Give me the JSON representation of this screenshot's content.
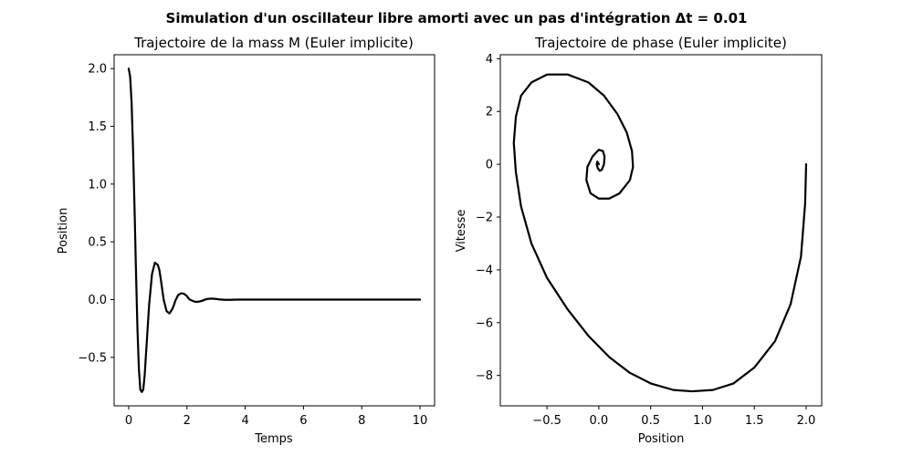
{
  "figure": {
    "suptitle": "Simulation d'un oscillateur libre amorti avec un pas d'intégration Δt = 0.01"
  },
  "chart_data": [
    {
      "type": "line",
      "title": "Trajectoire de la mass M (Euler implicite)",
      "xlabel": "Temps",
      "ylabel": "Position",
      "xlim": [
        -0.5,
        10.5
      ],
      "ylim": [
        -0.92,
        2.12
      ],
      "xticks": [
        0,
        2,
        4,
        6,
        8,
        10
      ],
      "xticklabels": [
        "0",
        "2",
        "4",
        "6",
        "8",
        "10"
      ],
      "yticks": [
        -0.5,
        0.0,
        0.5,
        1.0,
        1.5,
        2.0
      ],
      "yticklabels": [
        "−0.5",
        "0.0",
        "0.5",
        "1.0",
        "1.5",
        "2.0"
      ],
      "grid": false,
      "line_color": "#000000",
      "series": [
        {
          "x": [
            0,
            0.05,
            0.1,
            0.15,
            0.2,
            0.25,
            0.3,
            0.35,
            0.4,
            0.45,
            0.5,
            0.55,
            0.6,
            0.7,
            0.8,
            0.9,
            1.0,
            1.05,
            1.1,
            1.2,
            1.3,
            1.4,
            1.5,
            1.55,
            1.6,
            1.7,
            1.8,
            1.9,
            2.0,
            2.05,
            2.1,
            2.2,
            2.3,
            2.4,
            2.55,
            2.6,
            2.7,
            2.8,
            2.9,
            3.05,
            3.1,
            3.3,
            3.5,
            3.6,
            3.8,
            4.0,
            4.3,
            4.6,
            5.0,
            6.0,
            7.0,
            8.0,
            9.0,
            10.0
          ],
          "y": [
            2.0,
            1.93,
            1.7,
            1.3,
            0.8,
            0.25,
            -0.25,
            -0.6,
            -0.78,
            -0.8,
            -0.78,
            -0.65,
            -0.45,
            -0.05,
            0.22,
            0.32,
            0.3,
            0.26,
            0.18,
            0.0,
            -0.1,
            -0.12,
            -0.08,
            -0.05,
            -0.01,
            0.04,
            0.055,
            0.05,
            0.03,
            0.012,
            0.0,
            -0.012,
            -0.02,
            -0.018,
            -0.008,
            -0.002,
            0.005,
            0.008,
            0.008,
            0.004,
            0.002,
            -0.002,
            -0.002,
            -0.001,
            0.0,
            0.0,
            0.0,
            0.0,
            0.0,
            0.0,
            0.0,
            0.0,
            0.0,
            0.0
          ]
        }
      ]
    },
    {
      "type": "line",
      "title": "Trajectoire de phase (Euler implicite)",
      "xlabel": "Position",
      "ylabel": "Vitesse",
      "xlim": [
        -0.95,
        2.15
      ],
      "ylim": [
        -9.15,
        4.15
      ],
      "xticks": [
        -0.5,
        0.0,
        0.5,
        1.0,
        1.5,
        2.0
      ],
      "xticklabels": [
        "−0.5",
        "0.0",
        "0.5",
        "1.0",
        "1.5",
        "2.0"
      ],
      "yticks": [
        -8,
        -6,
        -4,
        -2,
        0,
        2,
        4
      ],
      "yticklabels": [
        "−8",
        "−6",
        "−4",
        "−2",
        "0",
        "2",
        "4"
      ],
      "grid": false,
      "line_color": "#000000",
      "series": [
        {
          "x": [
            2.0,
            1.99,
            1.95,
            1.85,
            1.7,
            1.5,
            1.3,
            1.1,
            0.9,
            0.72,
            0.5,
            0.3,
            0.1,
            -0.1,
            -0.3,
            -0.5,
            -0.65,
            -0.75,
            -0.8,
            -0.82,
            -0.8,
            -0.75,
            -0.65,
            -0.5,
            -0.3,
            -0.1,
            0.05,
            0.18,
            0.27,
            0.32,
            0.33,
            0.3,
            0.2,
            0.1,
            0.0,
            -0.08,
            -0.12,
            -0.11,
            -0.06,
            0.0,
            0.04,
            0.055,
            0.05,
            0.03,
            0.01,
            -0.01,
            -0.02,
            -0.015,
            -0.005,
            0.0
          ],
          "y": [
            0.0,
            -1.5,
            -3.5,
            -5.3,
            -6.7,
            -7.7,
            -8.3,
            -8.55,
            -8.6,
            -8.55,
            -8.3,
            -7.9,
            -7.3,
            -6.5,
            -5.5,
            -4.3,
            -3.0,
            -1.6,
            -0.3,
            0.8,
            1.8,
            2.6,
            3.1,
            3.4,
            3.4,
            3.1,
            2.6,
            1.9,
            1.2,
            0.5,
            -0.1,
            -0.6,
            -1.1,
            -1.3,
            -1.3,
            -1.1,
            -0.6,
            -0.1,
            0.3,
            0.55,
            0.5,
            0.3,
            0.0,
            -0.2,
            -0.25,
            -0.15,
            0.0,
            0.1,
            0.05,
            0.0
          ]
        }
      ]
    }
  ]
}
